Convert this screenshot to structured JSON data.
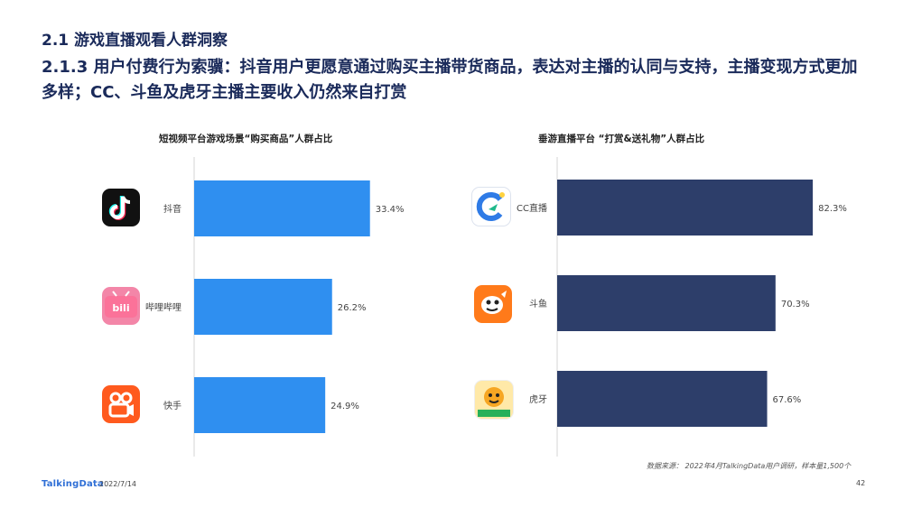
{
  "header": {
    "section": "2.1 游戏直播观看人群洞察",
    "subtitle": "2.1.3 用户付费行为索骥：抖音用户更愿意通过购买主播带货商品，表达对主播的认同与支持，主播变现方式更加多样；CC、斗鱼及虎牙主播主要收入仍然来自打赏"
  },
  "charts": {
    "left": {
      "title": "短视频平台游戏场景“购买商品”人群占比"
    },
    "right": {
      "title": "垂游直播平台 “打赏&送礼物”人群占比"
    }
  },
  "icons": {
    "douyin": "douyin-logo-icon",
    "bilibili": "bilibili-logo-icon",
    "kuaishou": "kuaishou-logo-icon",
    "cc": "cc-live-logo-icon",
    "douyu": "douyu-logo-icon",
    "huya": "huya-logo-icon"
  },
  "colors": {
    "left_bar": "#2f8ff0",
    "right_bar": "#2d3e6a",
    "heading": "#1a2a5a"
  },
  "chart_data": [
    {
      "type": "bar",
      "orientation": "horizontal",
      "title": "短视频平台游戏场景“购买商品”人群占比",
      "categories": [
        "抖音",
        "哔哩哔哩",
        "快手"
      ],
      "values": [
        33.4,
        26.2,
        24.9
      ],
      "labels": [
        "33.4%",
        "26.2%",
        "24.9%"
      ],
      "unit": "%"
    },
    {
      "type": "bar",
      "orientation": "horizontal",
      "title": "垂游直播平台 “打赏&送礼物”人群占比",
      "categories": [
        "CC直播",
        "斗鱼",
        "虎牙"
      ],
      "values": [
        82.3,
        70.3,
        67.6
      ],
      "labels": [
        "82.3%",
        "70.3%",
        "67.6%"
      ],
      "unit": "%"
    }
  ],
  "footer": {
    "brand": "TalkingData",
    "date": "2022/7/14",
    "source": "数据来源： 2022年4月TalkingData用户调研，样本量1,500个",
    "page": "42"
  }
}
